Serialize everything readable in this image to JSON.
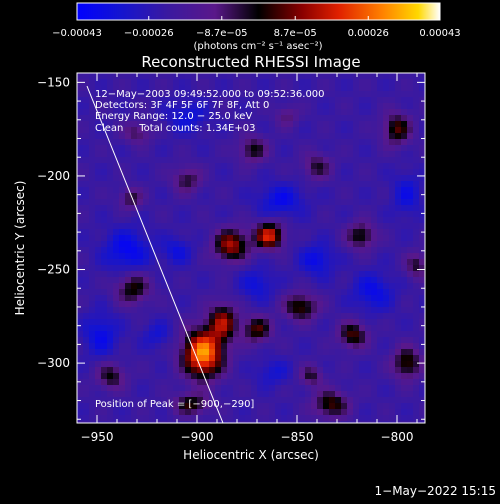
{
  "chart_data": {
    "type": "heatmap",
    "title": "Reconstructed RHESSI Image",
    "xlabel": "Heliocentric X (arcsec)",
    "ylabel": "Heliocentric Y (arcsec)",
    "xlim": [
      -960,
      -786
    ],
    "ylim": [
      -332,
      -145
    ],
    "x_ticks": [
      {
        "value": -950,
        "label": "−950"
      },
      {
        "value": -900,
        "label": "−900"
      },
      {
        "value": -850,
        "label": "−850"
      },
      {
        "value": -800,
        "label": "−800"
      }
    ],
    "y_ticks": [
      {
        "value": -150,
        "label": "−150"
      },
      {
        "value": -200,
        "label": "−200"
      },
      {
        "value": -250,
        "label": "−250"
      },
      {
        "value": -300,
        "label": "−300"
      }
    ],
    "colorbar": {
      "range": [
        -0.00043,
        0.00043
      ],
      "tick_values": [
        -0.00043,
        -0.00026,
        -8.7e-05,
        8.7e-05,
        0.00026,
        0.00043
      ],
      "tick_labels": [
        "−0.00043",
        "−0.00026",
        "−8.7e−05",
        "8.7e−05",
        "0.00026",
        "0.00043"
      ],
      "unit_label": "(photons cm⁻² s⁻¹ asec⁻²)"
    },
    "annotations": [
      "12−May−2003 09:49:52.000 to 09:52:36.000",
      "Detectors: 3F 4F 5F 6F 7F 8F, Att 0",
      "Energy Range: 12.0 − 25.0 keV",
      "Clean     Total counts: 1.34E+03"
    ],
    "peak_label": "Position of Peak = [−900,−290]",
    "peak_position": [
      -900,
      -290
    ],
    "limb_line": [
      [
        -955,
        -152
      ],
      [
        -887,
        -332
      ]
    ],
    "sources": [
      {
        "x": -897,
        "y": -295,
        "sx": 7,
        "sy": 9,
        "amp": 1.0
      },
      {
        "x": -883,
        "y": -237,
        "sx": 6,
        "sy": 6,
        "amp": 0.65
      },
      {
        "x": -864,
        "y": -232,
        "sx": 5,
        "sy": 5,
        "amp": 0.75
      },
      {
        "x": -887,
        "y": -278,
        "sx": 5,
        "sy": 7,
        "amp": 0.6
      },
      {
        "x": -870,
        "y": -282,
        "sx": 5,
        "sy": 5,
        "amp": 0.5
      },
      {
        "x": -848,
        "y": -270,
        "sx": 6,
        "sy": 5,
        "amp": 0.5
      },
      {
        "x": -822,
        "y": -285,
        "sx": 5,
        "sy": 5,
        "amp": 0.5
      },
      {
        "x": -833,
        "y": -322,
        "sx": 6,
        "sy": 5,
        "amp": 0.5
      },
      {
        "x": -795,
        "y": -300,
        "sx": 5,
        "sy": 6,
        "amp": 0.5
      },
      {
        "x": -818,
        "y": -232,
        "sx": 5,
        "sy": 5,
        "amp": 0.45
      },
      {
        "x": -800,
        "y": -175,
        "sx": 5,
        "sy": 6,
        "amp": 0.5
      },
      {
        "x": -932,
        "y": -260,
        "sx": 6,
        "sy": 6,
        "amp": 0.45
      },
      {
        "x": -943,
        "y": -307,
        "sx": 5,
        "sy": 5,
        "amp": 0.4
      },
      {
        "x": -903,
        "y": -322,
        "sx": 6,
        "sy": 4,
        "amp": 0.45
      },
      {
        "x": -872,
        "y": -186,
        "sx": 5,
        "sy": 5,
        "amp": 0.4
      },
      {
        "x": -905,
        "y": -202,
        "sx": 5,
        "sy": 5,
        "amp": 0.35
      },
      {
        "x": -933,
        "y": -212,
        "sx": 4,
        "sy": 4,
        "amp": 0.35
      },
      {
        "x": -840,
        "y": -195,
        "sx": 5,
        "sy": 5,
        "amp": 0.35
      },
      {
        "x": -930,
        "y": -177,
        "sx": 5,
        "sy": 4,
        "amp": 0.3
      },
      {
        "x": -843,
        "y": -307,
        "sx": 4,
        "sy": 4,
        "amp": 0.35
      },
      {
        "x": -790,
        "y": -248,
        "sx": 4,
        "sy": 5,
        "amp": 0.35
      },
      {
        "x": -855,
        "y": -168,
        "sx": 4,
        "sy": 4,
        "amp": 0.25
      },
      {
        "x": -935,
        "y": -240,
        "sx": 8,
        "sy": 8,
        "amp": -0.35
      },
      {
        "x": -905,
        "y": -168,
        "sx": 7,
        "sy": 6,
        "amp": -0.25
      },
      {
        "x": -858,
        "y": -213,
        "sx": 8,
        "sy": 6,
        "amp": -0.3
      },
      {
        "x": -840,
        "y": -245,
        "sx": 6,
        "sy": 6,
        "amp": -0.3
      },
      {
        "x": -812,
        "y": -262,
        "sx": 7,
        "sy": 7,
        "amp": -0.3
      },
      {
        "x": -870,
        "y": -258,
        "sx": 6,
        "sy": 6,
        "amp": -0.25
      },
      {
        "x": -948,
        "y": -285,
        "sx": 6,
        "sy": 8,
        "amp": -0.3
      },
      {
        "x": -910,
        "y": -240,
        "sx": 5,
        "sy": 5,
        "amp": -0.25
      },
      {
        "x": -795,
        "y": -210,
        "sx": 5,
        "sy": 8,
        "amp": -0.25
      },
      {
        "x": -862,
        "y": -305,
        "sx": 6,
        "sy": 5,
        "amp": -0.2
      },
      {
        "x": -920,
        "y": -285,
        "sx": 5,
        "sy": 5,
        "amp": -0.2
      }
    ]
  },
  "footer": {
    "timestamp": "1−May−2022 15:15"
  }
}
